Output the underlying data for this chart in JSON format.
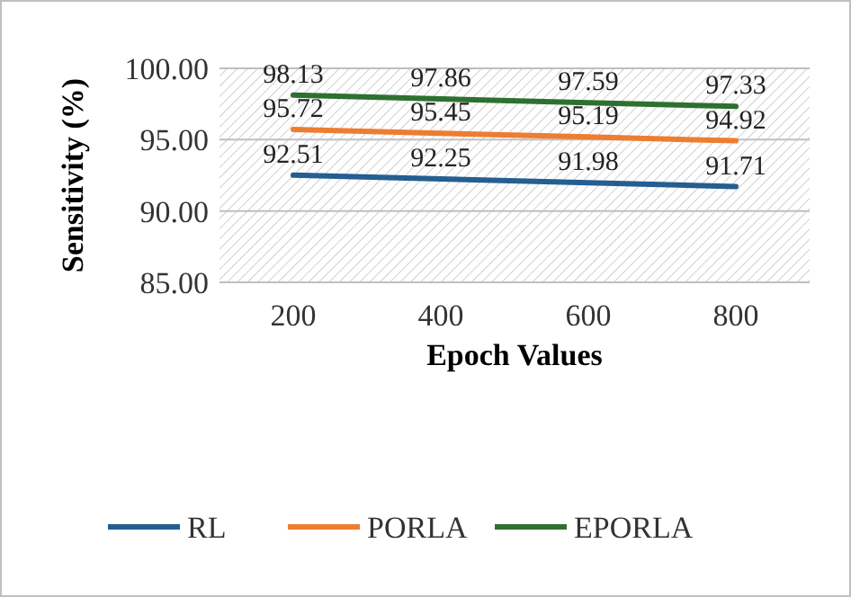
{
  "chart_data": {
    "type": "line",
    "xlabel": "Epoch Values",
    "ylabel": "Sensitivity (%)",
    "categories": [
      "200",
      "400",
      "600",
      "800"
    ],
    "series": [
      {
        "name": "RL",
        "color": "#255e91",
        "values": [
          92.51,
          92.25,
          91.98,
          91.71
        ]
      },
      {
        "name": "PORLA",
        "color": "#ed7d31",
        "values": [
          95.72,
          95.45,
          95.19,
          94.92
        ]
      },
      {
        "name": "EPORLA",
        "color": "#2e7030",
        "values": [
          98.13,
          97.86,
          97.59,
          97.33
        ]
      }
    ],
    "ylim": [
      85,
      100
    ],
    "yticks": [
      {
        "value": 85,
        "label": "85.00"
      },
      {
        "value": 90,
        "label": "90.00"
      },
      {
        "value": 95,
        "label": "95.00"
      },
      {
        "value": 100,
        "label": "100.00"
      }
    ],
    "grid": "y",
    "legend": "bottom",
    "data_labels": true,
    "marker": "none",
    "line_style": "solid"
  }
}
